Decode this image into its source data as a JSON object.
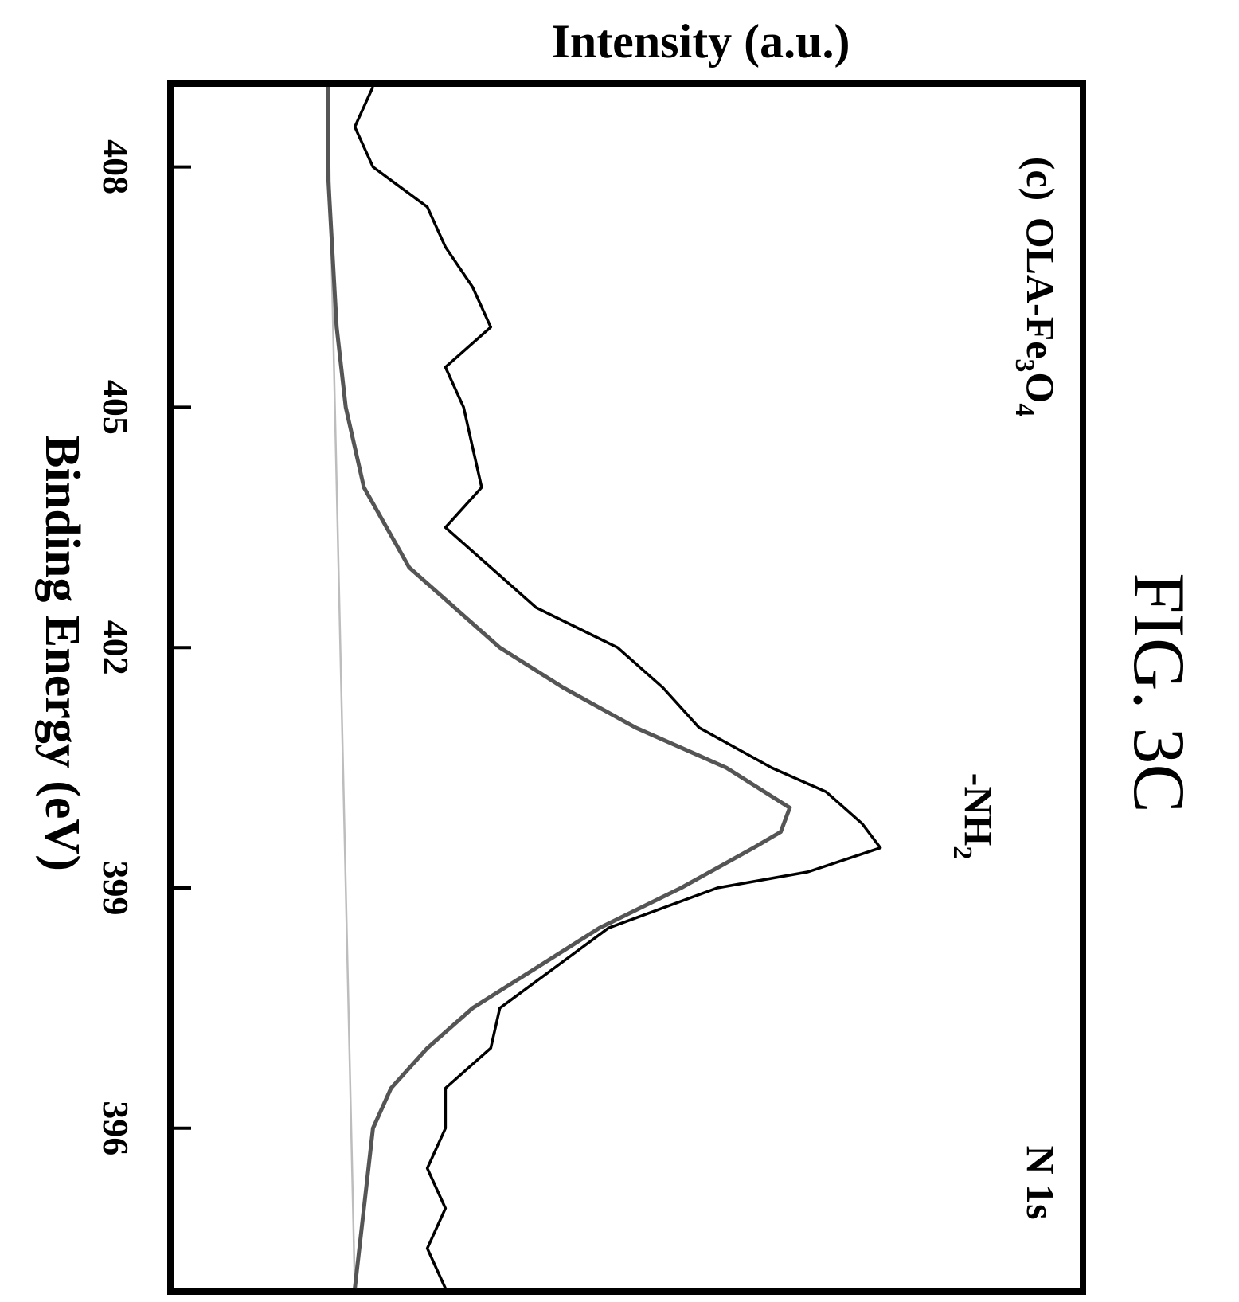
{
  "figure_label": "FIG. 3C",
  "chart_data": {
    "type": "line",
    "orientation": "rotated-90-clockwise",
    "panel_label": "(c)",
    "sample_prefix": "OLA-Fe",
    "sample_sub1": "3",
    "sample_mid": "O",
    "sample_sub2": "4",
    "core_level": "N 1s",
    "peak_label": "-NH",
    "peak_label_sub": "2",
    "xlabel": "Binding Energy (eV)",
    "ylabel": "Intensity (a.u.)",
    "x_reversed": true,
    "xlim": [
      409.0,
      394.0
    ],
    "ylim": [
      0,
      1
    ],
    "xticks": [
      408,
      405,
      402,
      399,
      396
    ],
    "xtick_labels": [
      "408",
      "405",
      "402",
      "399",
      "396"
    ],
    "y_ticks_labeled": false,
    "grid": false,
    "series": [
      {
        "role": "raw spectrum",
        "color": "#000000",
        "x": [
          409.0,
          408.5,
          408.0,
          407.5,
          407.0,
          406.5,
          406.0,
          405.5,
          405.0,
          404.5,
          404.0,
          403.5,
          403.0,
          402.5,
          402.0,
          401.5,
          401.0,
          400.5,
          400.2,
          399.8,
          399.5,
          399.2,
          399.0,
          398.5,
          398.0,
          397.5,
          397.0,
          396.5,
          396.0,
          395.5,
          395.0,
          394.5,
          394.0
        ],
        "values": [
          0.22,
          0.2,
          0.22,
          0.28,
          0.3,
          0.33,
          0.35,
          0.3,
          0.32,
          0.33,
          0.34,
          0.3,
          0.35,
          0.4,
          0.49,
          0.54,
          0.58,
          0.66,
          0.72,
          0.76,
          0.78,
          0.7,
          0.6,
          0.48,
          0.42,
          0.36,
          0.35,
          0.3,
          0.3,
          0.28,
          0.3,
          0.28,
          0.3
        ]
      },
      {
        "role": "fitted peak",
        "color": "#555555",
        "center": 399.9,
        "x": [
          409.0,
          408.0,
          407.0,
          406.0,
          405.0,
          404.0,
          403.0,
          402.0,
          401.5,
          401.0,
          400.5,
          400.0,
          399.7,
          399.5,
          399.0,
          398.5,
          398.0,
          397.5,
          397.0,
          396.5,
          396.0,
          395.0,
          394.0
        ],
        "values": [
          0.17,
          0.17,
          0.175,
          0.18,
          0.19,
          0.21,
          0.26,
          0.36,
          0.43,
          0.51,
          0.61,
          0.68,
          0.67,
          0.64,
          0.56,
          0.47,
          0.4,
          0.33,
          0.28,
          0.24,
          0.22,
          0.21,
          0.2
        ]
      },
      {
        "role": "background",
        "color": "#bdbdbd",
        "x": [
          409.0,
          394.0
        ],
        "values": [
          0.17,
          0.2
        ]
      }
    ]
  }
}
